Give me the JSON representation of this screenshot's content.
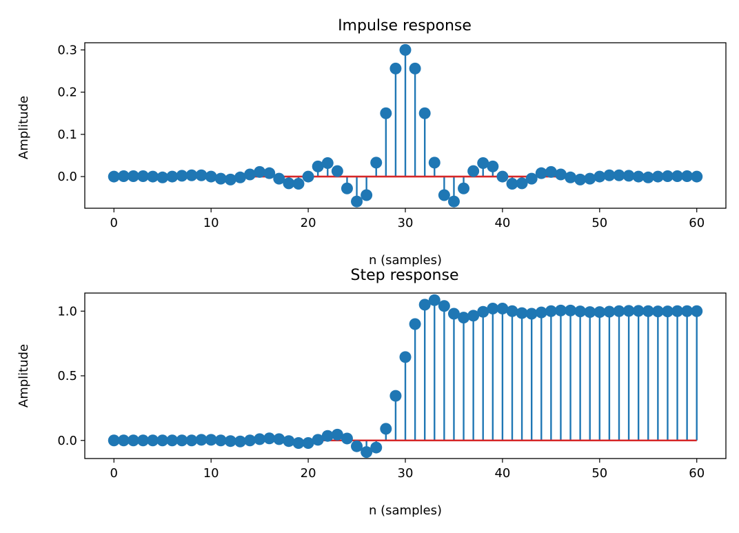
{
  "chart_data": [
    {
      "type": "stem",
      "title": "Impulse response",
      "xlabel": "n (samples)",
      "ylabel": "Amplitude",
      "xlim": [
        -3,
        63
      ],
      "ylim": [
        -0.075,
        0.317
      ],
      "xticks": [
        0,
        10,
        20,
        30,
        40,
        50,
        60
      ],
      "xtick_labels": [
        "0",
        "10",
        "20",
        "30",
        "40",
        "50",
        "60"
      ],
      "yticks": [
        0.0,
        0.1,
        0.2,
        0.3
      ],
      "ytick_labels": [
        "0.0",
        "0.1",
        "0.2",
        "0.3"
      ],
      "baseline": 0,
      "x": [
        0,
        1,
        2,
        3,
        4,
        5,
        6,
        7,
        8,
        9,
        10,
        11,
        12,
        13,
        14,
        15,
        16,
        17,
        18,
        19,
        20,
        21,
        22,
        23,
        24,
        25,
        26,
        27,
        28,
        29,
        30,
        31,
        32,
        33,
        34,
        35,
        36,
        37,
        38,
        39,
        40,
        41,
        42,
        43,
        44,
        45,
        46,
        47,
        48,
        49,
        50,
        51,
        52,
        53,
        54,
        55,
        56,
        57,
        58,
        59,
        60
      ],
      "values": [
        0.0,
        0.001,
        0.001,
        0.001,
        0.0,
        -0.002,
        0.0,
        0.002,
        0.003,
        0.003,
        0.0,
        -0.005,
        -0.007,
        -0.002,
        0.005,
        0.011,
        0.008,
        -0.005,
        -0.016,
        -0.017,
        0.0,
        0.024,
        0.032,
        0.013,
        -0.028,
        -0.059,
        -0.044,
        0.033,
        0.15,
        0.256,
        0.3,
        0.256,
        0.15,
        0.033,
        -0.044,
        -0.059,
        -0.028,
        0.013,
        0.032,
        0.024,
        0.0,
        -0.017,
        -0.016,
        -0.005,
        0.008,
        0.011,
        0.005,
        -0.002,
        -0.007,
        -0.005,
        0.0,
        0.003,
        0.003,
        0.002,
        0.0,
        -0.002,
        0.0,
        0.001,
        0.001,
        0.001,
        0.0
      ]
    },
    {
      "type": "stem",
      "title": "Step response",
      "xlabel": "n (samples)",
      "ylabel": "Amplitude",
      "xlim": [
        -3,
        63
      ],
      "ylim": [
        -0.14,
        1.14
      ],
      "xticks": [
        0,
        10,
        20,
        30,
        40,
        50,
        60
      ],
      "xtick_labels": [
        "0",
        "10",
        "20",
        "30",
        "40",
        "50",
        "60"
      ],
      "yticks": [
        0.0,
        0.5,
        1.0
      ],
      "ytick_labels": [
        "0.0",
        "0.5",
        "1.0"
      ],
      "baseline": 0,
      "x": [
        0,
        1,
        2,
        3,
        4,
        5,
        6,
        7,
        8,
        9,
        10,
        11,
        12,
        13,
        14,
        15,
        16,
        17,
        18,
        19,
        20,
        21,
        22,
        23,
        24,
        25,
        26,
        27,
        28,
        29,
        30,
        31,
        32,
        33,
        34,
        35,
        36,
        37,
        38,
        39,
        40,
        41,
        42,
        43,
        44,
        45,
        46,
        47,
        48,
        49,
        50,
        51,
        52,
        53,
        54,
        55,
        56,
        57,
        58,
        59,
        60
      ],
      "values": [
        0.0,
        0.0,
        0.0,
        0.0,
        0.0,
        0.0,
        0.0,
        0.0,
        0.0,
        0.005,
        0.005,
        0.0,
        -0.005,
        -0.008,
        0.0,
        0.01,
        0.016,
        0.01,
        -0.005,
        -0.02,
        -0.02,
        0.005,
        0.035,
        0.045,
        0.015,
        -0.045,
        -0.09,
        -0.055,
        0.09,
        0.345,
        0.645,
        0.9,
        1.05,
        1.085,
        1.04,
        0.98,
        0.95,
        0.965,
        0.995,
        1.02,
        1.02,
        1.0,
        0.985,
        0.98,
        0.99,
        1.0,
        1.005,
        1.005,
        0.998,
        0.993,
        0.993,
        0.996,
        1.0,
        1.002,
        1.002,
        1.0,
        0.998,
        0.998,
        1.0,
        1.0,
        1.0
      ]
    }
  ],
  "colors": {
    "stem": "#1f77b4",
    "marker": "#1f77b4",
    "baseline": "#d62728"
  }
}
